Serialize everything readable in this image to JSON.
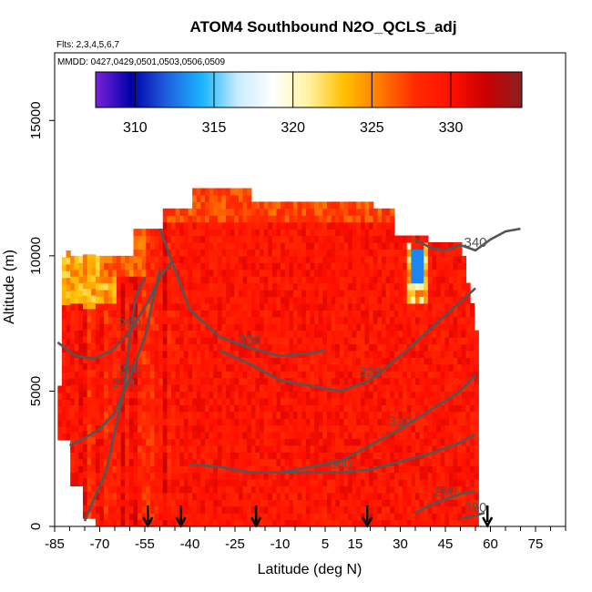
{
  "chart_data": {
    "type": "heatmap",
    "title": "ATOM4 Southbound N2O_QCLS_adj",
    "flights_label": "Flts: 2,3,4,5,6,7",
    "dates_label": "MMDD: 0427,0429,0501,0503,0506,0509",
    "xlabel": "Latitude (deg N)",
    "ylabel": "Altitude (m)",
    "xlim": [
      -85,
      85
    ],
    "ylim": [
      0,
      17500
    ],
    "x_ticks": [
      -85,
      -70,
      -55,
      -40,
      -25,
      -10,
      5,
      15,
      30,
      45,
      60,
      75
    ],
    "x_tick_labels": [
      "-85",
      "-70",
      "-55",
      "-40",
      "-25",
      "-10",
      "5",
      "15",
      "30",
      "45",
      "60",
      "75"
    ],
    "y_ticks": [
      0,
      5000,
      10000,
      15000
    ],
    "y_tick_labels": [
      "0",
      "5000",
      "10000",
      "15000"
    ],
    "colorbar": {
      "min": 307.5,
      "max": 334.5,
      "ticks": [
        310,
        315,
        320,
        325,
        330
      ],
      "tick_labels": [
        "310",
        "315",
        "320",
        "325",
        "330"
      ],
      "colors": [
        "#7a22d9",
        "#0000a8",
        "#1f5fe0",
        "#19b4ff",
        "#c8ecff",
        "#ffffff",
        "#fff2a0",
        "#ffbf00",
        "#ff7a00",
        "#ff2a00",
        "#ff1000",
        "#c80000",
        "#8b2020"
      ]
    },
    "contours": [
      {
        "label": "270",
        "points": [
          [
            -75,
            200
          ],
          [
            -72,
            1000
          ],
          [
            -68,
            2000
          ],
          [
            -65,
            3500
          ],
          [
            -62,
            5000
          ],
          [
            -60,
            7000
          ],
          [
            -58,
            8500
          ],
          [
            -55,
            9200
          ]
        ]
      },
      {
        "label": "280",
        "points": [
          [
            -80,
            3000
          ],
          [
            -76,
            3200
          ],
          [
            -70,
            3600
          ],
          [
            -65,
            4200
          ],
          [
            -60,
            5500
          ],
          [
            -55,
            7000
          ],
          [
            -52,
            8500
          ],
          [
            -50,
            9500
          ]
        ]
      },
      {
        "label": "290",
        "points": [
          [
            -84,
            6800
          ],
          [
            -78,
            6300
          ],
          [
            -72,
            6200
          ],
          [
            -66,
            6500
          ],
          [
            -60,
            7200
          ],
          [
            -54,
            8300
          ],
          [
            -50,
            9200
          ],
          [
            -46,
            9800
          ]
        ]
      },
      {
        "label": "300",
        "points": [
          [
            -40,
            2300
          ],
          [
            -30,
            2200
          ],
          [
            -20,
            2000
          ],
          [
            -10,
            2000
          ],
          [
            0,
            2000
          ],
          [
            10,
            2000
          ],
          [
            20,
            2100
          ],
          [
            30,
            2400
          ],
          [
            40,
            2700
          ],
          [
            50,
            3100
          ],
          [
            55,
            3400
          ]
        ]
      },
      {
        "label": "310",
        "points": [
          [
            -10,
            2000
          ],
          [
            0,
            2200
          ],
          [
            10,
            2400
          ],
          [
            20,
            3000
          ],
          [
            30,
            3600
          ],
          [
            40,
            4300
          ],
          [
            50,
            5000
          ],
          [
            55,
            5600
          ]
        ]
      },
      {
        "label": "320",
        "points": [
          [
            -30,
            6500
          ],
          [
            -20,
            6000
          ],
          [
            -10,
            5400
          ],
          [
            0,
            5200
          ],
          [
            10,
            5000
          ],
          [
            20,
            5400
          ],
          [
            30,
            6300
          ],
          [
            40,
            7300
          ],
          [
            50,
            8300
          ],
          [
            55,
            8800
          ]
        ]
      },
      {
        "label": "330",
        "points": [
          [
            -50,
            11000
          ],
          [
            -40,
            8000
          ],
          [
            -30,
            7000
          ],
          [
            -20,
            6600
          ],
          [
            -10,
            6300
          ],
          [
            0,
            6400
          ],
          [
            5,
            6500
          ]
        ]
      },
      {
        "label": "290",
        "points": [
          [
            35,
            500
          ],
          [
            40,
            800
          ],
          [
            45,
            1000
          ],
          [
            50,
            1200
          ],
          [
            55,
            1300
          ]
        ]
      },
      {
        "label": "280",
        "points": [
          [
            50,
            300
          ],
          [
            55,
            400
          ],
          [
            58,
            500
          ]
        ]
      },
      {
        "label": "340",
        "points": [
          [
            35,
            10600
          ],
          [
            40,
            10300
          ],
          [
            45,
            10200
          ],
          [
            50,
            10400
          ],
          [
            55,
            10200
          ],
          [
            60,
            10600
          ],
          [
            65,
            10900
          ],
          [
            70,
            11000
          ]
        ]
      }
    ],
    "flight_arrows_x": [
      -54,
      -43,
      -18,
      19,
      59
    ]
  }
}
